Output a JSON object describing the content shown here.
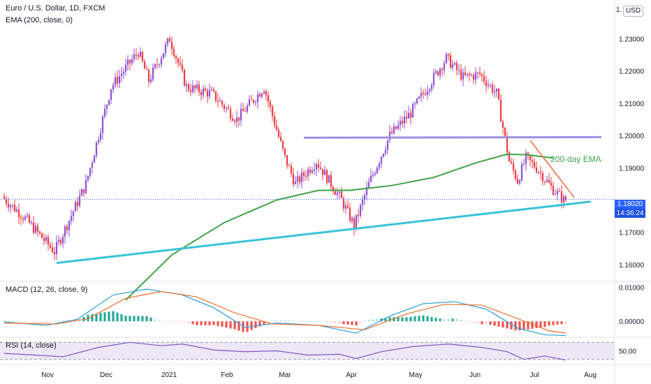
{
  "header": {
    "symbol": "Euro / U.S. Dollar, 1D, FXCM",
    "ema_label": "EMA (200, close, 0)",
    "currency": "USD",
    "currency_prefix": "1."
  },
  "price_tag": {
    "value": "1.18020",
    "countdown": "14:36:24"
  },
  "annotation": {
    "ema_text": "200-day EMA"
  },
  "colors": {
    "up": "#8e4fd6",
    "down": "#ef3b42",
    "ema": "#3fa548",
    "support": "#39c3d8",
    "resistance": "#a08ee3",
    "downtrend": "#f26a3b",
    "macd": "#2a9fd6",
    "signal": "#f0702d",
    "rsi": "#7e57c2",
    "rsi_band": "#ede7f6",
    "price_tag": "#2962ff"
  },
  "chart_data": [
    {
      "type": "candlestick",
      "x_ticks": [
        "Nov",
        "Dec",
        "2021",
        "Feb",
        "Mar",
        "Apr",
        "May",
        "Jun",
        "Jul",
        "Aug"
      ],
      "y_ticks": [
        "1.23000",
        "1.22000",
        "1.21000",
        "1.20000",
        "1.19000",
        "1.18000",
        "1.17000",
        "1.16000"
      ],
      "ylim": [
        1.155,
        1.242
      ],
      "anchors": [
        {
          "i": 0,
          "p": 1.181
        },
        {
          "i": 10,
          "p": 1.175
        },
        {
          "i": 25,
          "p": 1.164
        },
        {
          "i": 40,
          "p": 1.185
        },
        {
          "i": 52,
          "p": 1.215
        },
        {
          "i": 65,
          "p": 1.226
        },
        {
          "i": 70,
          "p": 1.217
        },
        {
          "i": 80,
          "p": 1.23
        },
        {
          "i": 88,
          "p": 1.215
        },
        {
          "i": 100,
          "p": 1.213
        },
        {
          "i": 112,
          "p": 1.205
        },
        {
          "i": 125,
          "p": 1.215
        },
        {
          "i": 135,
          "p": 1.193
        },
        {
          "i": 140,
          "p": 1.185
        },
        {
          "i": 150,
          "p": 1.192
        },
        {
          "i": 162,
          "p": 1.18
        },
        {
          "i": 168,
          "p": 1.172
        },
        {
          "i": 175,
          "p": 1.185
        },
        {
          "i": 185,
          "p": 1.2
        },
        {
          "i": 195,
          "p": 1.207
        },
        {
          "i": 203,
          "p": 1.215
        },
        {
          "i": 212,
          "p": 1.224
        },
        {
          "i": 220,
          "p": 1.218
        },
        {
          "i": 228,
          "p": 1.219
        },
        {
          "i": 236,
          "p": 1.213
        },
        {
          "i": 242,
          "p": 1.192
        },
        {
          "i": 246,
          "p": 1.186
        },
        {
          "i": 250,
          "p": 1.193
        },
        {
          "i": 255,
          "p": 1.19
        },
        {
          "i": 262,
          "p": 1.184
        },
        {
          "i": 268,
          "p": 1.18
        }
      ],
      "candle_count": 269,
      "ema_line": [
        {
          "i": 58,
          "p": 1.149
        },
        {
          "i": 80,
          "p": 1.163
        },
        {
          "i": 105,
          "p": 1.173
        },
        {
          "i": 130,
          "p": 1.18
        },
        {
          "i": 150,
          "p": 1.183
        },
        {
          "i": 165,
          "p": 1.183
        },
        {
          "i": 185,
          "p": 1.1845
        },
        {
          "i": 205,
          "p": 1.187
        },
        {
          "i": 225,
          "p": 1.1915
        },
        {
          "i": 240,
          "p": 1.1942
        },
        {
          "i": 250,
          "p": 1.194
        },
        {
          "i": 262,
          "p": 1.193
        }
      ],
      "support_line": [
        {
          "i": 25,
          "p": 1.1605
        },
        {
          "i": 280,
          "p": 1.1795
        }
      ],
      "resistance_line": [
        {
          "i": 143,
          "p": 1.1993
        },
        {
          "i": 285,
          "p": 1.1995
        }
      ],
      "downtrend_line": [
        {
          "i": 251,
          "p": 1.1985
        },
        {
          "i": 272,
          "p": 1.1808
        }
      ],
      "last_price": 1.1802
    },
    {
      "type": "line",
      "title": "MACD (12, 26, close, 9)",
      "y_ticks": [
        "0.01000",
        "0.00000"
      ],
      "ylim": [
        -0.0045,
        0.0118
      ],
      "macd": [
        {
          "i": 0,
          "v": -0.0002
        },
        {
          "i": 20,
          "v": -0.0012
        },
        {
          "i": 35,
          "v": 0.0006
        },
        {
          "i": 52,
          "v": 0.0078
        },
        {
          "i": 68,
          "v": 0.0095
        },
        {
          "i": 85,
          "v": 0.0078
        },
        {
          "i": 100,
          "v": 0.004
        },
        {
          "i": 115,
          "v": -0.0018
        },
        {
          "i": 130,
          "v": -0.0005
        },
        {
          "i": 150,
          "v": -0.0012
        },
        {
          "i": 168,
          "v": -0.0035
        },
        {
          "i": 185,
          "v": 0.0018
        },
        {
          "i": 200,
          "v": 0.0052
        },
        {
          "i": 215,
          "v": 0.0058
        },
        {
          "i": 230,
          "v": 0.0036
        },
        {
          "i": 245,
          "v": -0.002
        },
        {
          "i": 258,
          "v": -0.004
        },
        {
          "i": 268,
          "v": -0.0042
        }
      ],
      "signal": [
        {
          "i": 0,
          "v": -0.0005
        },
        {
          "i": 25,
          "v": -0.0008
        },
        {
          "i": 40,
          "v": 0.0008
        },
        {
          "i": 58,
          "v": 0.0068
        },
        {
          "i": 75,
          "v": 0.0088
        },
        {
          "i": 92,
          "v": 0.0072
        },
        {
          "i": 110,
          "v": 0.0025
        },
        {
          "i": 128,
          "v": -0.0008
        },
        {
          "i": 150,
          "v": -0.0012
        },
        {
          "i": 172,
          "v": -0.0025
        },
        {
          "i": 192,
          "v": 0.0022
        },
        {
          "i": 210,
          "v": 0.005
        },
        {
          "i": 228,
          "v": 0.0048
        },
        {
          "i": 245,
          "v": 0.0008
        },
        {
          "i": 260,
          "v": -0.0028
        },
        {
          "i": 268,
          "v": -0.0035
        }
      ]
    },
    {
      "type": "line",
      "title": "RSI (14, close)",
      "y_ticks": [
        "50.00"
      ],
      "ylim": [
        18,
        82
      ],
      "band": [
        30,
        70
      ],
      "rsi": [
        {
          "i": 0,
          "v": 44
        },
        {
          "i": 15,
          "v": 40
        },
        {
          "i": 28,
          "v": 36
        },
        {
          "i": 45,
          "v": 58
        },
        {
          "i": 60,
          "v": 70
        },
        {
          "i": 75,
          "v": 62
        },
        {
          "i": 85,
          "v": 66
        },
        {
          "i": 100,
          "v": 52
        },
        {
          "i": 115,
          "v": 48
        },
        {
          "i": 130,
          "v": 50
        },
        {
          "i": 145,
          "v": 40
        },
        {
          "i": 160,
          "v": 42
        },
        {
          "i": 168,
          "v": 32
        },
        {
          "i": 180,
          "v": 48
        },
        {
          "i": 195,
          "v": 60
        },
        {
          "i": 212,
          "v": 66
        },
        {
          "i": 228,
          "v": 58
        },
        {
          "i": 240,
          "v": 48
        },
        {
          "i": 248,
          "v": 30
        },
        {
          "i": 258,
          "v": 38
        },
        {
          "i": 268,
          "v": 28
        }
      ]
    }
  ]
}
